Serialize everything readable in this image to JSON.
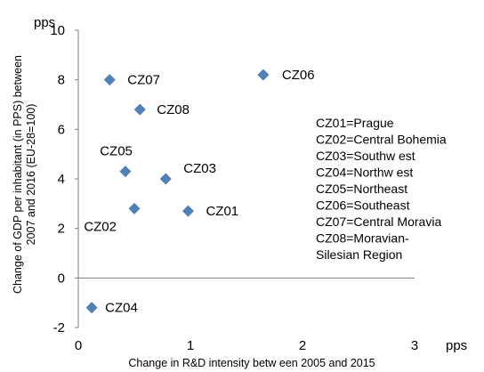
{
  "chart_data": {
    "type": "scatter",
    "xlabel": "Change in R&D intensity betw een 2005 and 2015",
    "ylabel_line1": "Change of GDP per inhabitant (in PPS) between",
    "ylabel_line2": "2007 and 2016 (EU-28=100)",
    "x_unit": "pps",
    "y_unit": "pps",
    "xlim": [
      0,
      3
    ],
    "ylim": [
      -2,
      10
    ],
    "xticks": [
      0,
      1,
      2,
      3
    ],
    "yticks": [
      -2,
      0,
      2,
      4,
      6,
      8,
      10
    ],
    "grid": false,
    "marker_color": "#4f81bd",
    "points": [
      {
        "label": "CZ01",
        "x": 0.98,
        "y": 2.7
      },
      {
        "label": "CZ02",
        "x": 0.5,
        "y": 2.8
      },
      {
        "label": "CZ03",
        "x": 0.78,
        "y": 4.0
      },
      {
        "label": "CZ04",
        "x": 0.12,
        "y": -1.2
      },
      {
        "label": "CZ05",
        "x": 0.42,
        "y": 4.3
      },
      {
        "label": "CZ06",
        "x": 1.65,
        "y": 8.2
      },
      {
        "label": "CZ07",
        "x": 0.28,
        "y": 8.0
      },
      {
        "label": "CZ08",
        "x": 0.55,
        "y": 6.8
      }
    ],
    "legend": [
      "CZ01=Prague",
      "CZ02=Central Bohemia",
      "CZ03=Southw est",
      "CZ04=Northw est",
      "CZ05=Northeast",
      "CZ06=Southeast",
      "CZ07=Central Moravia",
      "CZ08=Moravian-",
      "Silesian Region"
    ]
  }
}
